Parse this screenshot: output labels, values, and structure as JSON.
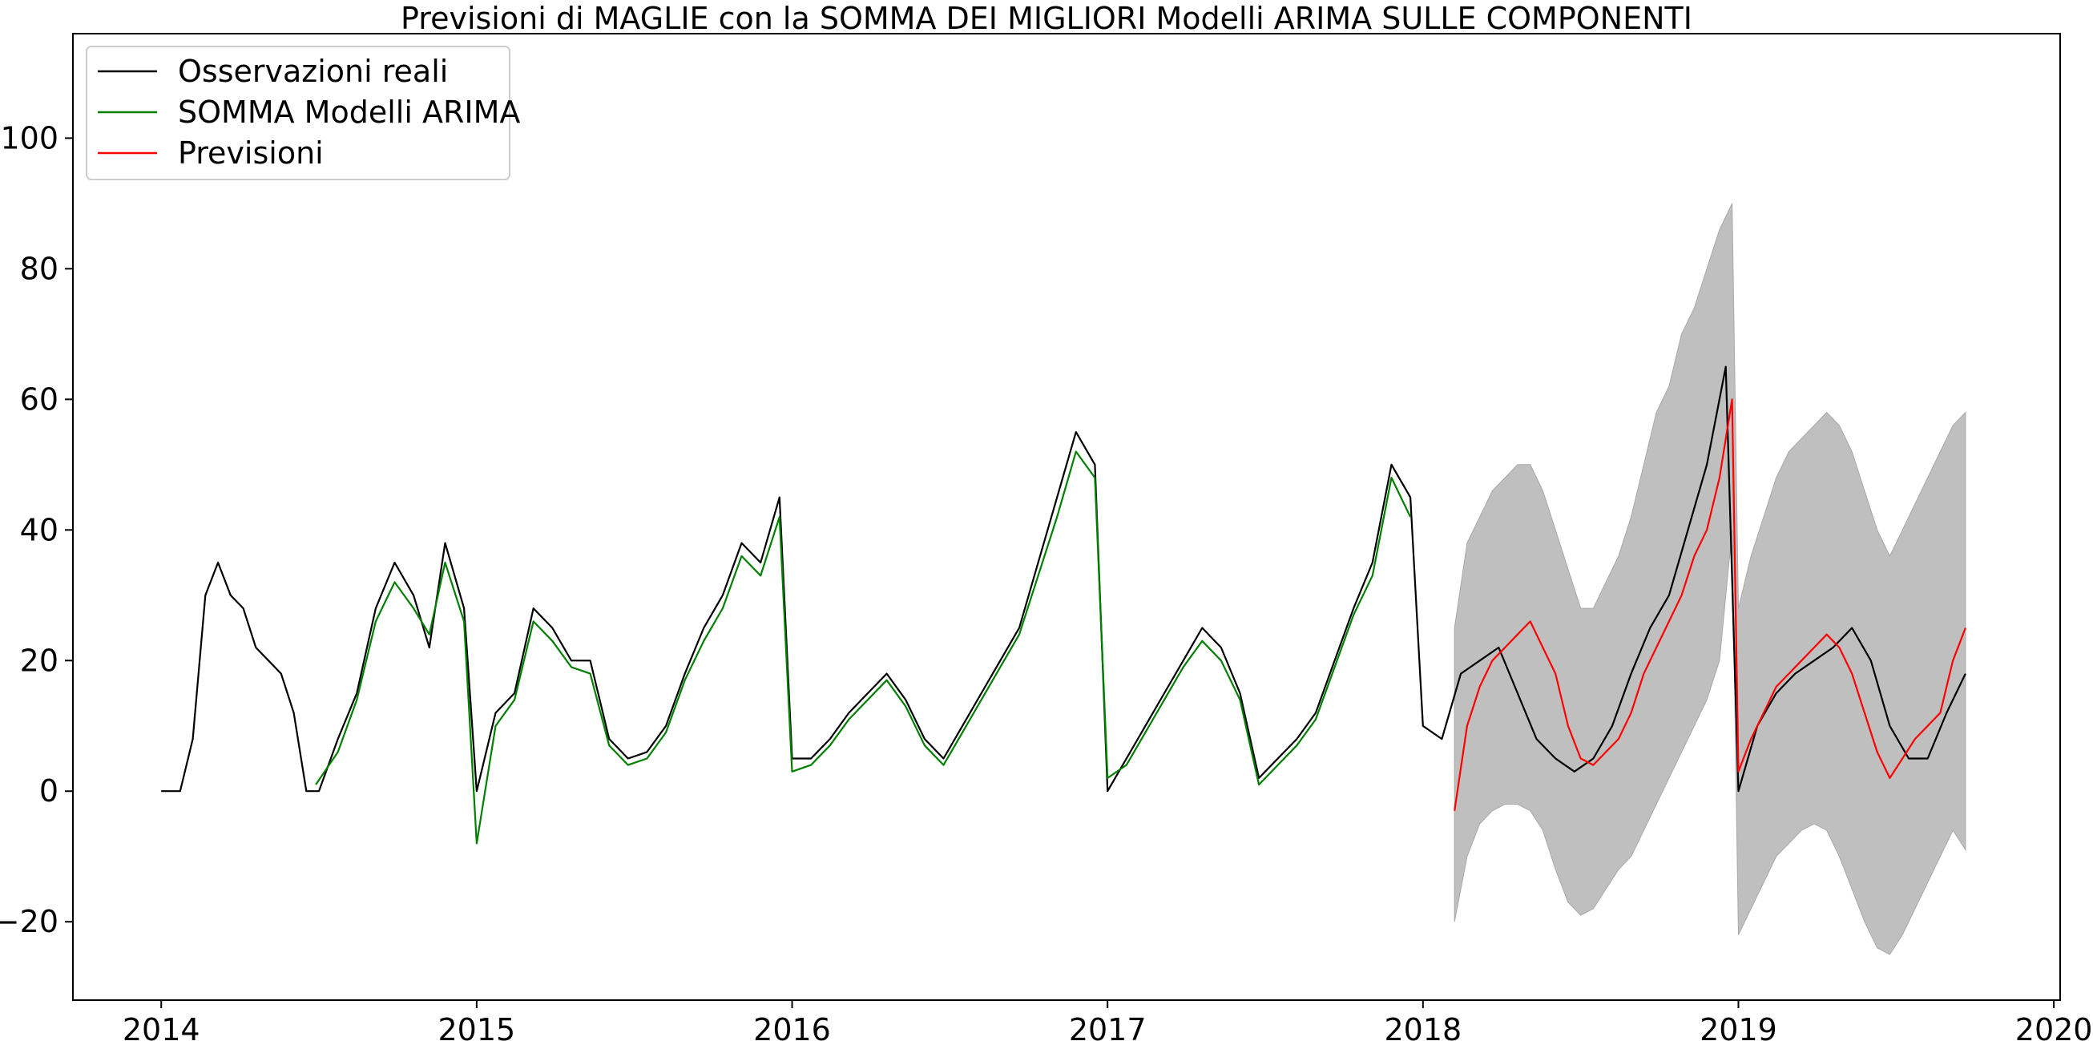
{
  "chart_data": {
    "type": "line",
    "title": "Previsioni di MAGLIE con la SOMMA DEI MIGLIORI Modelli ARIMA SULLE COMPONENTI",
    "xlabel": "",
    "ylabel": "",
    "xlim": [
      2013.72,
      2020.02
    ],
    "ylim": [
      -32,
      116
    ],
    "x_ticks": [
      2014,
      2015,
      2016,
      2017,
      2018,
      2019,
      2020
    ],
    "x_tick_labels": [
      "2014",
      "2015",
      "2016",
      "2017",
      "2018",
      "2019",
      "2020"
    ],
    "y_ticks": [
      -20,
      0,
      20,
      40,
      60,
      80,
      100
    ],
    "y_tick_labels": [
      "−20",
      "0",
      "20",
      "40",
      "60",
      "80",
      "100"
    ],
    "grid": false,
    "legend_position": "top-left",
    "colors": {
      "observed": "#000000",
      "arima_sum": "#008000",
      "forecast": "#ff0000",
      "confidence_band": "#bfbfbf"
    },
    "series": [
      {
        "name": "Osservazioni reali",
        "color": "#000000",
        "x": [
          2014.0,
          2014.06,
          2014.1,
          2014.14,
          2014.18,
          2014.22,
          2014.26,
          2014.3,
          2014.34,
          2014.38,
          2014.42,
          2014.46,
          2014.5,
          2014.56,
          2014.62,
          2014.68,
          2014.74,
          2014.8,
          2014.85,
          2014.9,
          2014.96,
          2015.0,
          2015.06,
          2015.12,
          2015.18,
          2015.24,
          2015.3,
          2015.36,
          2015.42,
          2015.48,
          2015.54,
          2015.6,
          2015.66,
          2015.72,
          2015.78,
          2015.84,
          2015.9,
          2015.96,
          2016.0,
          2016.06,
          2016.12,
          2016.18,
          2016.24,
          2016.3,
          2016.36,
          2016.42,
          2016.48,
          2016.54,
          2016.6,
          2016.66,
          2016.72,
          2016.78,
          2016.84,
          2016.9,
          2016.96,
          2017.0,
          2017.06,
          2017.12,
          2017.18,
          2017.24,
          2017.3,
          2017.36,
          2017.42,
          2017.48,
          2017.54,
          2017.6,
          2017.66,
          2017.72,
          2017.78,
          2017.84,
          2017.9,
          2017.96,
          2018.0,
          2018.06,
          2018.12,
          2018.18,
          2018.24,
          2018.3,
          2018.36,
          2018.42,
          2018.48,
          2018.54,
          2018.6,
          2018.66,
          2018.72,
          2018.78,
          2018.84,
          2018.9,
          2018.96,
          2019.0,
          2019.06,
          2019.12,
          2019.18,
          2019.24,
          2019.3,
          2019.36,
          2019.42,
          2019.48,
          2019.54,
          2019.6,
          2019.66,
          2019.72
        ],
        "values": [
          0,
          0,
          8,
          30,
          35,
          30,
          28,
          22,
          20,
          18,
          12,
          0,
          0,
          8,
          15,
          28,
          35,
          30,
          22,
          38,
          28,
          0,
          12,
          15,
          28,
          25,
          20,
          20,
          8,
          5,
          6,
          10,
          18,
          25,
          30,
          38,
          35,
          45,
          5,
          5,
          8,
          12,
          15,
          18,
          14,
          8,
          5,
          10,
          15,
          20,
          25,
          35,
          45,
          55,
          50,
          0,
          5,
          10,
          15,
          20,
          25,
          22,
          15,
          2,
          5,
          8,
          12,
          20,
          28,
          35,
          50,
          45,
          10,
          8,
          18,
          20,
          22,
          15,
          8,
          5,
          3,
          5,
          10,
          18,
          25,
          30,
          40,
          50,
          65,
          0,
          10,
          15,
          18,
          20,
          22,
          25,
          20,
          10,
          5,
          5,
          12,
          18
        ]
      },
      {
        "name": "SOMMA Modelli ARIMA",
        "color": "#008000",
        "x": [
          2014.49,
          2014.56,
          2014.62,
          2014.68,
          2014.74,
          2014.8,
          2014.85,
          2014.9,
          2014.96,
          2015.0,
          2015.06,
          2015.12,
          2015.18,
          2015.24,
          2015.3,
          2015.36,
          2015.42,
          2015.48,
          2015.54,
          2015.6,
          2015.66,
          2015.72,
          2015.78,
          2015.84,
          2015.9,
          2015.96,
          2016.0,
          2016.06,
          2016.12,
          2016.18,
          2016.24,
          2016.3,
          2016.36,
          2016.42,
          2016.48,
          2016.54,
          2016.6,
          2016.66,
          2016.72,
          2016.78,
          2016.84,
          2016.9,
          2016.96,
          2017.0,
          2017.06,
          2017.12,
          2017.18,
          2017.24,
          2017.3,
          2017.36,
          2017.42,
          2017.48,
          2017.54,
          2017.6,
          2017.66,
          2017.72,
          2017.78,
          2017.84,
          2017.9,
          2017.96
        ],
        "values": [
          1,
          6,
          14,
          26,
          32,
          28,
          24,
          35,
          26,
          -8,
          10,
          14,
          26,
          23,
          19,
          18,
          7,
          4,
          5,
          9,
          17,
          23,
          28,
          36,
          33,
          42,
          3,
          4,
          7,
          11,
          14,
          17,
          13,
          7,
          4,
          9,
          14,
          19,
          24,
          33,
          42,
          52,
          48,
          2,
          4,
          9,
          14,
          19,
          23,
          20,
          14,
          1,
          4,
          7,
          11,
          19,
          27,
          33,
          48,
          42
        ]
      },
      {
        "name": "Previsioni",
        "color": "#ff0000",
        "x": [
          2018.1,
          2018.14,
          2018.18,
          2018.22,
          2018.26,
          2018.3,
          2018.34,
          2018.38,
          2018.42,
          2018.46,
          2018.5,
          2018.54,
          2018.58,
          2018.62,
          2018.66,
          2018.7,
          2018.74,
          2018.78,
          2018.82,
          2018.86,
          2018.9,
          2018.94,
          2018.98,
          2019.0,
          2019.04,
          2019.08,
          2019.12,
          2019.16,
          2019.2,
          2019.24,
          2019.28,
          2019.32,
          2019.36,
          2019.4,
          2019.44,
          2019.48,
          2019.52,
          2019.56,
          2019.6,
          2019.64,
          2019.68,
          2019.72
        ],
        "values": [
          -3,
          10,
          16,
          20,
          22,
          24,
          26,
          22,
          18,
          10,
          5,
          4,
          6,
          8,
          12,
          18,
          22,
          26,
          30,
          36,
          40,
          48,
          60,
          3,
          8,
          12,
          16,
          18,
          20,
          22,
          24,
          22,
          18,
          12,
          6,
          2,
          5,
          8,
          10,
          12,
          20,
          25
        ]
      }
    ],
    "confidence_band": {
      "x": [
        2018.1,
        2018.14,
        2018.18,
        2018.22,
        2018.26,
        2018.3,
        2018.34,
        2018.38,
        2018.42,
        2018.46,
        2018.5,
        2018.54,
        2018.58,
        2018.62,
        2018.66,
        2018.7,
        2018.74,
        2018.78,
        2018.82,
        2018.86,
        2018.9,
        2018.94,
        2018.98,
        2019.0,
        2019.04,
        2019.08,
        2019.12,
        2019.16,
        2019.2,
        2019.24,
        2019.28,
        2019.32,
        2019.36,
        2019.4,
        2019.44,
        2019.48,
        2019.52,
        2019.56,
        2019.6,
        2019.64,
        2019.68,
        2019.72
      ],
      "lower": [
        -20,
        -10,
        -5,
        -3,
        -2,
        -2,
        -3,
        -6,
        -12,
        -17,
        -19,
        -18,
        -15,
        -12,
        -10,
        -6,
        -2,
        2,
        6,
        10,
        14,
        20,
        40,
        -22,
        -18,
        -14,
        -10,
        -8,
        -6,
        -5,
        -6,
        -10,
        -15,
        -20,
        -24,
        -25,
        -22,
        -18,
        -14,
        -10,
        -6,
        -9
      ],
      "upper": [
        25,
        38,
        42,
        46,
        48,
        50,
        50,
        46,
        40,
        34,
        28,
        28,
        32,
        36,
        42,
        50,
        58,
        62,
        70,
        74,
        80,
        86,
        90,
        28,
        36,
        42,
        48,
        52,
        54,
        56,
        58,
        56,
        52,
        46,
        40,
        36,
        40,
        44,
        48,
        52,
        56,
        58
      ]
    },
    "legend": [
      "Osservazioni reali",
      "SOMMA Modelli ARIMA",
      "Previsioni"
    ]
  }
}
